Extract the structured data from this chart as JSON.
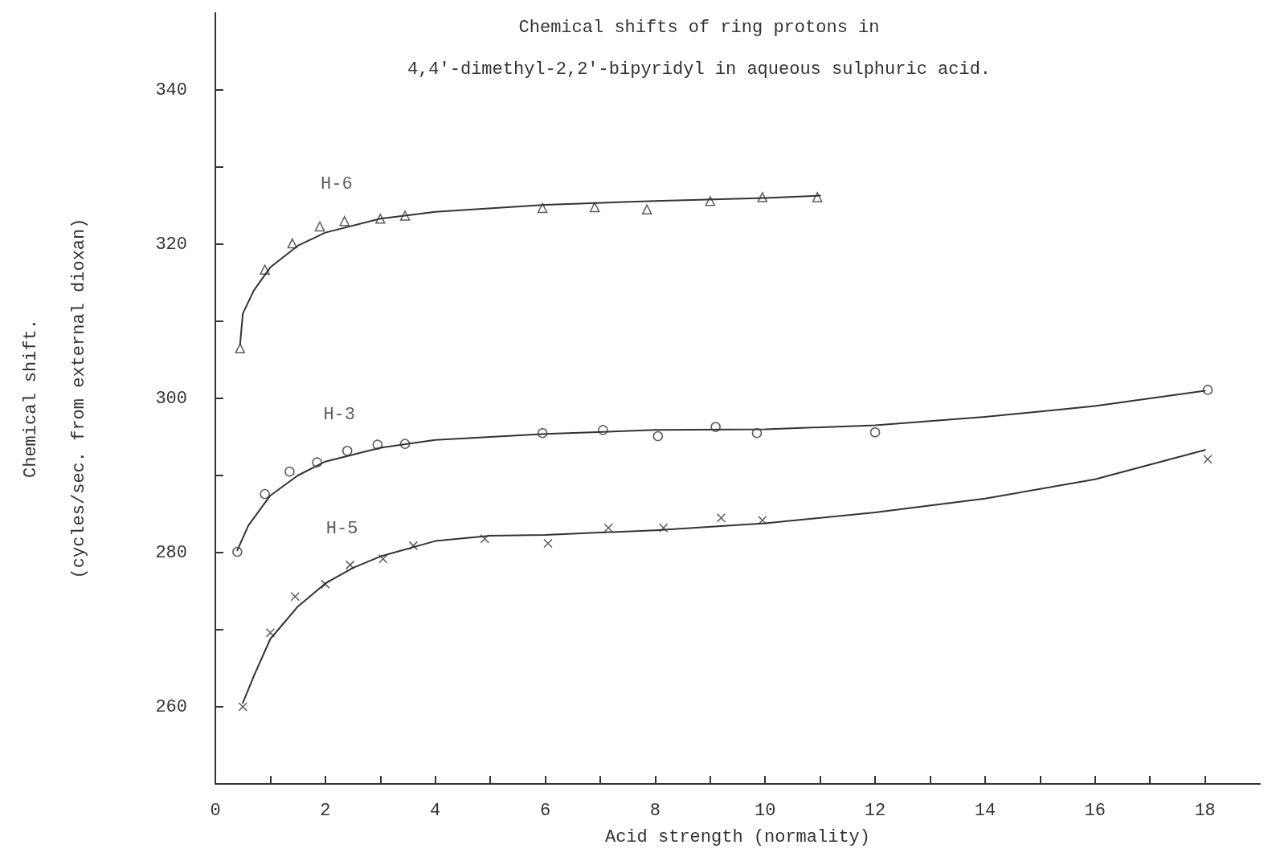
{
  "chart_data": {
    "type": "scatter",
    "title": "Chemical shifts of ring protons in",
    "subtitle": "4,4'-dimethyl-2,2'-bipyridyl in aqueous sulphuric acid.",
    "xlabel": "Acid strength (normality)",
    "ylabel": "Chemical shift.\n(cycles/sec. from external dioxan)",
    "xlim": [
      0,
      19
    ],
    "ylim": [
      250,
      350
    ],
    "xticks": [
      0,
      {
        "value": 1,
        "label": null
      },
      2,
      {
        "value": 3,
        "label": null
      },
      4,
      {
        "value": 5,
        "label": null
      },
      6,
      {
        "value": 7,
        "label": null
      },
      8,
      {
        "value": 9,
        "label": null
      },
      10,
      {
        "value": 11,
        "label": null
      },
      12,
      {
        "value": 13,
        "label": null
      },
      14,
      {
        "value": 15,
        "label": null
      },
      16,
      {
        "value": 17,
        "label": null
      },
      18
    ],
    "yticks": [
      {
        "value": 250,
        "label": null
      },
      260,
      {
        "value": 270,
        "label": null
      },
      280,
      {
        "value": 290,
        "label": null
      },
      300,
      {
        "value": 310,
        "label": null
      },
      320,
      {
        "value": 330,
        "label": null
      },
      340
    ],
    "grid": false,
    "series": [
      {
        "name": "H-6",
        "marker": "triangle",
        "color": "#333333",
        "x": [
          0.45,
          0.9,
          1.4,
          1.9,
          2.35,
          3.0,
          3.45,
          5.95,
          6.9,
          7.85,
          9.0,
          9.95,
          10.95
        ],
        "values": [
          306.5,
          316.7,
          320.1,
          322.3,
          323.0,
          323.3,
          323.7,
          324.7,
          324.8,
          324.5,
          325.6,
          326.1,
          326.1
        ]
      },
      {
        "type": "line",
        "marker": "none",
        "line_style": "solid",
        "color": "#333333",
        "x": [
          0.45,
          0.5,
          0.7,
          1,
          1.5,
          2,
          3,
          4,
          6,
          8,
          10,
          11
        ],
        "values": [
          307,
          311,
          314,
          317,
          319.8,
          321.5,
          323.3,
          324.2,
          325.1,
          325.6,
          326,
          326.3
        ]
      },
      {
        "name": "H-3",
        "marker": "circle",
        "color": "#333333",
        "x": [
          0.4,
          0.9,
          1.35,
          1.85,
          2.4,
          2.95,
          3.45,
          5.95,
          7.05,
          8.05,
          9.1,
          9.85,
          12.0,
          18.05
        ],
        "values": [
          280.1,
          287.6,
          290.5,
          291.7,
          293.2,
          294.0,
          294.1,
          295.5,
          295.9,
          295.1,
          296.3,
          295.5,
          295.6,
          301.1
        ]
      },
      {
        "type": "line",
        "marker": "none",
        "line_style": "solid",
        "color": "#333333",
        "x": [
          0.4,
          0.6,
          1,
          1.5,
          2,
          3,
          4,
          6,
          8,
          10,
          12,
          14,
          16,
          18
        ],
        "values": [
          280.3,
          283.5,
          287.4,
          290,
          291.8,
          293.6,
          294.6,
          295.4,
          295.9,
          296,
          296.5,
          297.6,
          299,
          301
        ]
      },
      {
        "name": "H-5",
        "marker": "cross",
        "color": "#333333",
        "x": [
          0.5,
          1.0,
          1.45,
          2.0,
          2.45,
          3.05,
          3.6,
          4.9,
          6.05,
          7.15,
          8.15,
          9.2,
          9.95,
          18.05
        ],
        "values": [
          260.0,
          269.6,
          274.3,
          275.9,
          278.4,
          279.2,
          280.9,
          281.8,
          281.2,
          283.2,
          283.2,
          284.5,
          284.2,
          292.1
        ]
      },
      {
        "type": "line",
        "marker": "none",
        "line_style": "solid",
        "color": "#333333",
        "x": [
          0.5,
          0.7,
          1,
          1.5,
          2,
          2.5,
          3,
          4,
          5,
          6,
          8,
          10,
          12,
          14,
          16,
          18
        ],
        "values": [
          260.5,
          264,
          268.8,
          273,
          276,
          278,
          279.5,
          281.5,
          282.2,
          282.3,
          282.9,
          283.8,
          285.2,
          287,
          289.5,
          293.3
        ]
      }
    ]
  }
}
